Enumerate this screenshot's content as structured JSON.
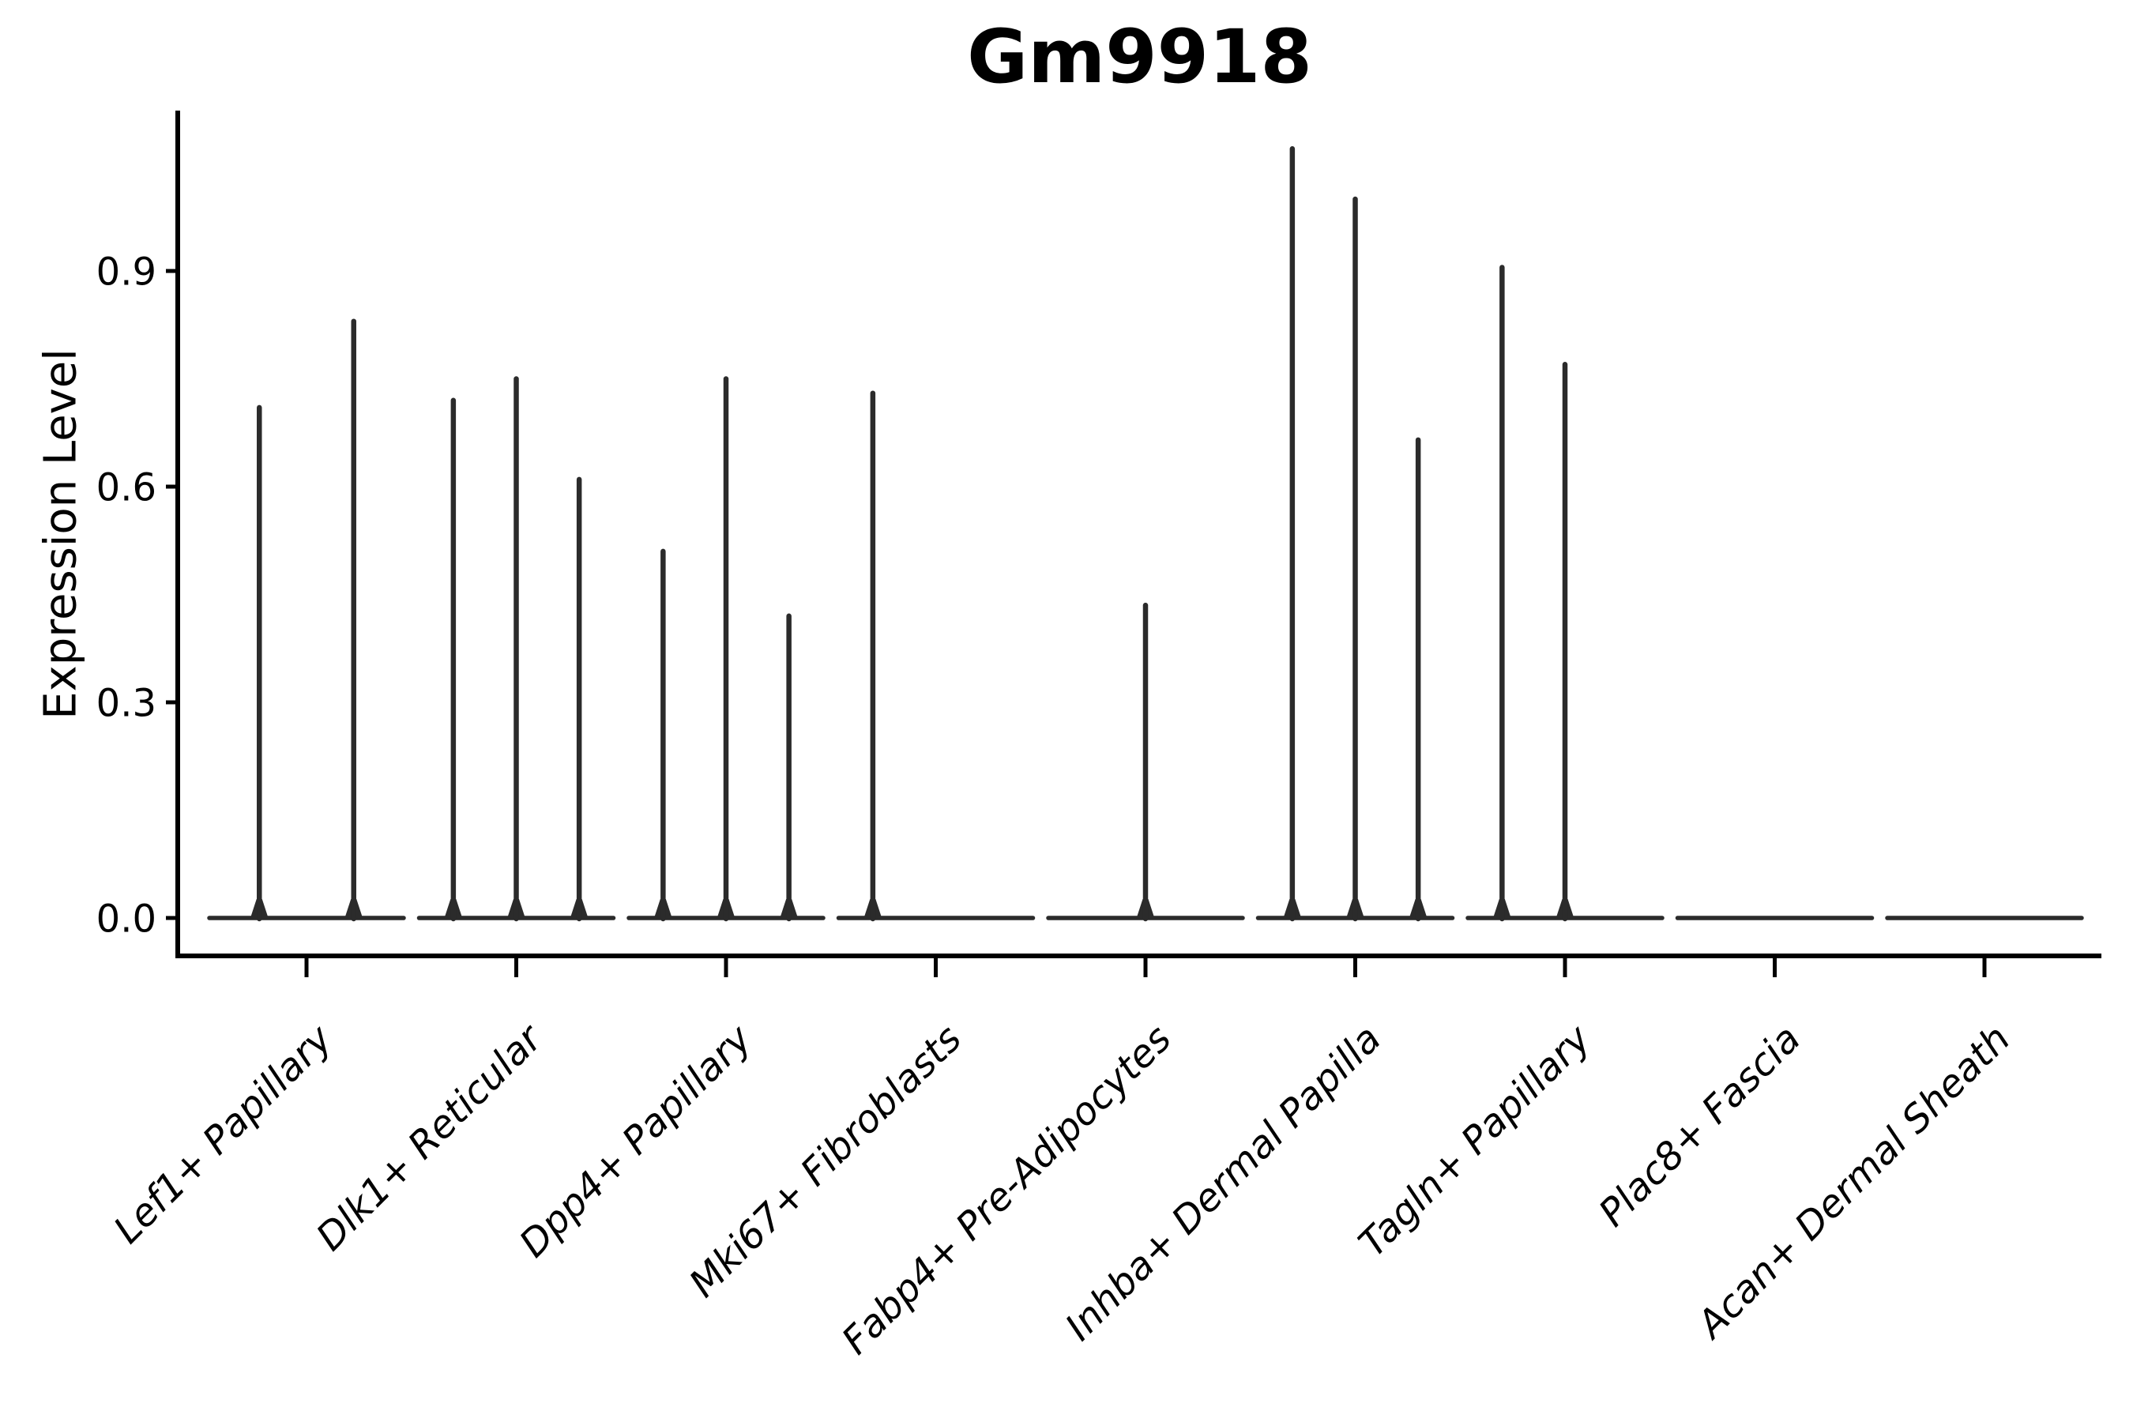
{
  "chart_data": {
    "type": "violin",
    "title": "Gm9918",
    "ylabel": "Expression Level",
    "xlabel": "",
    "grid": false,
    "legend": "none",
    "background_color": "#ffffff",
    "axis_color": "#000000",
    "text_color": "#000000",
    "violin_color": "#2b2b2b",
    "ylim": [
      0.0,
      1.12
    ],
    "yticks": [
      0.0,
      0.3,
      0.6,
      0.9
    ],
    "ytick_labels": [
      "0.0",
      "0.3",
      "0.6",
      "0.9"
    ],
    "x_label_rotation": 45,
    "categories": [
      "Lef1+ Papillary",
      "Dlk1+ Reticular",
      "Dpp4+ Papillary",
      "Mki67+ Fibroblasts",
      "Fabp4+ Pre-Adipocytes",
      "Inhba+ Dermal Papilla",
      "Tagln+ Papillary",
      "Plac8+ Fascia",
      "Acan+ Dermal Sheath"
    ],
    "series": [
      {
        "category": "Lef1+ Papillary",
        "baseline_value": 0.0,
        "spikes": [
          {
            "offset_frac": -0.225,
            "value": 0.71
          },
          {
            "offset_frac": 0.225,
            "value": 0.83
          }
        ]
      },
      {
        "category": "Dlk1+ Reticular",
        "baseline_value": 0.0,
        "spikes": [
          {
            "offset_frac": -0.3,
            "value": 0.72
          },
          {
            "offset_frac": 0.0,
            "value": 0.75
          },
          {
            "offset_frac": 0.3,
            "value": 0.61
          }
        ]
      },
      {
        "category": "Dpp4+ Papillary",
        "baseline_value": 0.0,
        "spikes": [
          {
            "offset_frac": -0.3,
            "value": 0.51
          },
          {
            "offset_frac": 0.0,
            "value": 0.75
          },
          {
            "offset_frac": 0.3,
            "value": 0.42
          }
        ]
      },
      {
        "category": "Mki67+ Fibroblasts",
        "baseline_value": 0.0,
        "spikes": [
          {
            "offset_frac": -0.3,
            "value": 0.73
          }
        ]
      },
      {
        "category": "Fabp4+ Pre-Adipocytes",
        "baseline_value": 0.0,
        "spikes": [
          {
            "offset_frac": 0.0,
            "value": 0.435
          }
        ]
      },
      {
        "category": "Inhba+ Dermal Papilla",
        "baseline_value": 0.0,
        "spikes": [
          {
            "offset_frac": -0.3,
            "value": 1.07
          },
          {
            "offset_frac": 0.0,
            "value": 1.0
          },
          {
            "offset_frac": 0.3,
            "value": 0.665
          }
        ]
      },
      {
        "category": "Tagln+ Papillary",
        "baseline_value": 0.0,
        "spikes": [
          {
            "offset_frac": -0.3,
            "value": 0.905
          },
          {
            "offset_frac": 0.0,
            "value": 0.77
          }
        ]
      },
      {
        "category": "Plac8+ Fascia",
        "baseline_value": 0.0,
        "spikes": []
      },
      {
        "category": "Acan+ Dermal Sheath",
        "baseline_value": 0.0,
        "spikes": []
      }
    ]
  }
}
